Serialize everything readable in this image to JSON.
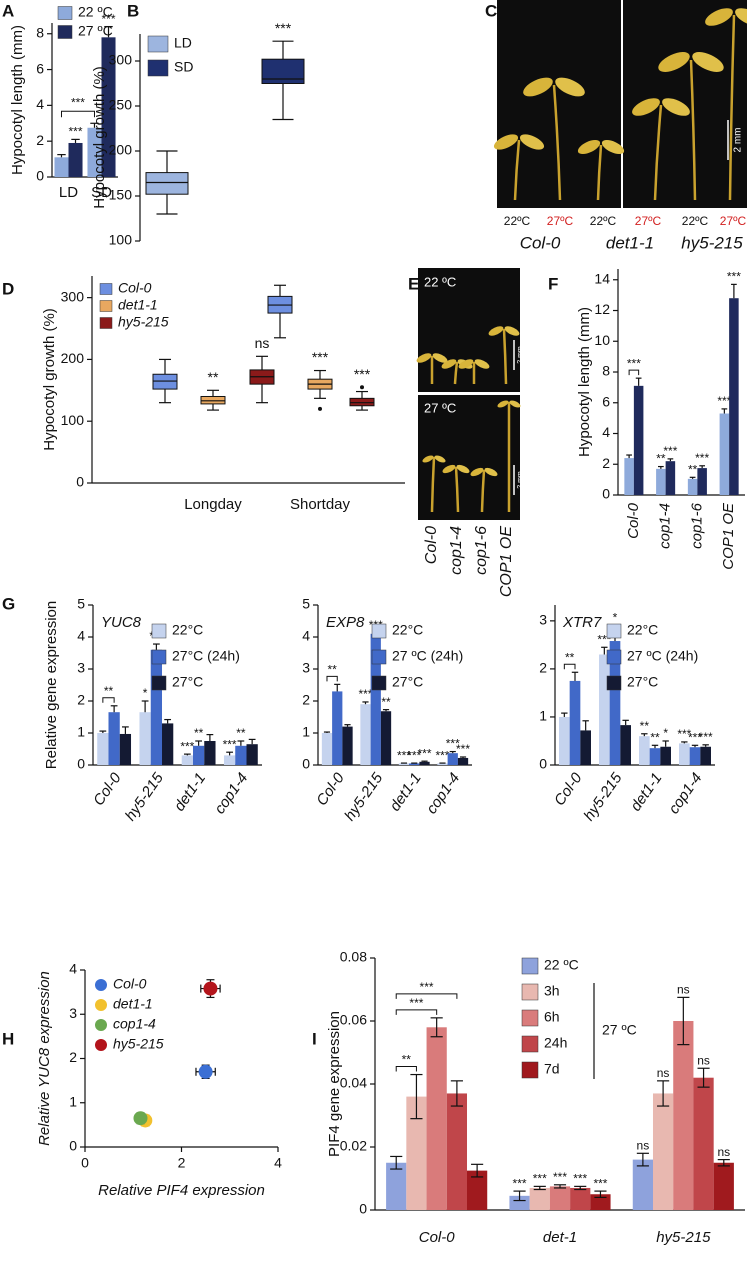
{
  "chart_data": [
    {
      "panel": "A",
      "type": "bar",
      "ylabel": "Hypocotyl length (mm)",
      "categories": [
        "LD",
        "SD"
      ],
      "series": [
        {
          "name": "22 ºC",
          "color": "#8eaadb",
          "values": [
            1.1,
            2.75
          ],
          "errors": [
            0.15,
            0.25
          ],
          "stars": [
            null,
            null
          ]
        },
        {
          "name": "27 ºC",
          "color": "#1f2a5c",
          "values": [
            1.9,
            7.8
          ],
          "errors": [
            0.2,
            0.6
          ],
          "stars": [
            "***",
            "***"
          ]
        }
      ],
      "bracket_label": "***",
      "ylim": [
        0,
        8.6
      ],
      "yticks": [
        0,
        2,
        4,
        6,
        8
      ]
    },
    {
      "panel": "B",
      "type": "box",
      "ylabel": "Hypocotyl growth (%)",
      "series": [
        {
          "name": "LD",
          "color": "#9db5df",
          "values": [
            {
              "min": 130,
              "q1": 152,
              "median": 165,
              "q3": 176,
              "max": 200
            }
          ],
          "stars": [
            null
          ]
        },
        {
          "name": "SD",
          "color": "#1f3070",
          "values": [
            {
              "min": 235,
              "q1": 275,
              "median": 280,
              "q3": 302,
              "max": 322
            }
          ],
          "stars": [
            "***"
          ]
        }
      ],
      "ylim": [
        100,
        330
      ],
      "yticks": [
        100,
        150,
        200,
        250,
        300
      ]
    },
    {
      "panel": "D",
      "type": "box",
      "ylabel": "Hypocotyl growth (%)",
      "categories": [
        "Longday",
        "Shortday"
      ],
      "series": [
        {
          "name": "Col-0",
          "color": "#6d8fe0",
          "values": [
            {
              "min": 130,
              "q1": 152,
              "median": 165,
              "q3": 176,
              "max": 200
            },
            {
              "min": 235,
              "q1": 275,
              "median": 288,
              "q3": 302,
              "max": 320
            }
          ],
          "stars": [
            null,
            null
          ]
        },
        {
          "name": "det1-1",
          "color": "#e8a860",
          "values": [
            {
              "min": 118,
              "q1": 128,
              "median": 133,
              "q3": 140,
              "max": 150
            },
            {
              "min": 137,
              "q1": 152,
              "median": 160,
              "q3": 168,
              "max": 182
            }
          ],
          "outliers": [
            null,
            120
          ],
          "stars": [
            "**",
            "***"
          ]
        },
        {
          "name": "hy5-215",
          "color": "#8b1a1a",
          "values": [
            {
              "min": 130,
              "q1": 160,
              "median": 172,
              "q3": 183,
              "max": 205
            },
            {
              "min": 118,
              "q1": 125,
              "median": 130,
              "q3": 137,
              "max": 148
            }
          ],
          "outliers": [
            null,
            155
          ],
          "stars": [
            "ns",
            "***"
          ]
        }
      ],
      "ylim": [
        0,
        335
      ],
      "yticks": [
        0,
        100,
        200,
        300
      ]
    },
    {
      "panel": "F",
      "type": "bar",
      "ylabel": "Hypocotyl length (mm)",
      "categories": [
        "Col-0",
        "cop1-4",
        "cop1-6",
        "COP1 OE"
      ],
      "series": [
        {
          "name": "22 ºC",
          "color": "#8eaadb",
          "values": [
            2.4,
            1.7,
            1.05,
            5.3
          ],
          "errors": [
            0.2,
            0.15,
            0.1,
            0.3
          ],
          "stars": [
            null,
            "**",
            "**",
            "***"
          ]
        },
        {
          "name": "27 ºC",
          "color": "#1f2a5c",
          "values": [
            7.1,
            2.2,
            1.75,
            12.8
          ],
          "errors": [
            0.5,
            0.15,
            0.15,
            0.9
          ],
          "stars": [
            "***",
            "***",
            "***",
            "***"
          ]
        }
      ],
      "brackets": true,
      "ylim": [
        0,
        14.7
      ],
      "yticks": [
        0,
        2,
        4,
        6,
        8,
        10,
        12,
        14
      ]
    },
    {
      "panel": "G",
      "type": "bar",
      "title": "YUC8",
      "ylabel": "Relative gene expression",
      "categories": [
        "Col-0",
        "hy5-215",
        "det1-1",
        "cop1-4"
      ],
      "series": [
        {
          "name": "22°C",
          "color": "#c5d3ee",
          "values": [
            1.0,
            1.65,
            0.3,
            0.3
          ],
          "errors": [
            0.06,
            0.35,
            0.04,
            0.1
          ],
          "stars": [
            null,
            "*",
            "***",
            "***"
          ]
        },
        {
          "name": "27°C (24h)",
          "color": "#4169c8",
          "values": [
            1.65,
            3.6,
            0.6,
            0.6
          ],
          "errors": [
            0.2,
            0.18,
            0.15,
            0.15
          ],
          "stars": [
            "**",
            "***",
            "**",
            "**"
          ]
        },
        {
          "name": "27°C",
          "color": "#141a33",
          "values": [
            0.97,
            1.3,
            0.75,
            0.65
          ],
          "errors": [
            0.22,
            0.12,
            0.2,
            0.15
          ],
          "stars": [
            null,
            null,
            null,
            null
          ]
        }
      ],
      "brackets": true,
      "ylim": [
        0,
        5
      ],
      "yticks": [
        0,
        1,
        2,
        3,
        4,
        5
      ]
    },
    {
      "type": "bar",
      "title": "EXP8",
      "categories": [
        "Col-0",
        "hy5-215",
        "det1-1",
        "cop1-4"
      ],
      "series": [
        {
          "name": "22°C",
          "color": "#c5d3ee",
          "values": [
            1.0,
            1.9,
            0.05,
            0.05
          ],
          "errors": [
            0.03,
            0.07,
            0.01,
            0.01
          ],
          "stars": [
            null,
            "***",
            "***",
            "***"
          ]
        },
        {
          "name": "27 ºC (24h)",
          "color": "#4169c8",
          "values": [
            2.3,
            4.1,
            0.05,
            0.37
          ],
          "errors": [
            0.22,
            0.03,
            0.01,
            0.05
          ],
          "stars": [
            "**",
            "***",
            "***",
            "***"
          ]
        },
        {
          "name": "27°C",
          "color": "#141a33",
          "values": [
            1.2,
            1.68,
            0.1,
            0.22
          ],
          "errors": [
            0.06,
            0.05,
            0.02,
            0.03
          ],
          "stars": [
            null,
            "**",
            "***",
            "***"
          ]
        }
      ],
      "brackets": true,
      "ylim": [
        0,
        5
      ],
      "yticks": [
        0,
        1,
        2,
        3,
        4,
        5
      ]
    },
    {
      "type": "bar",
      "title": "XTR7",
      "categories": [
        "Col-0",
        "hy5-215",
        "det1-1",
        "cop1-4"
      ],
      "series": [
        {
          "name": "22°C",
          "color": "#c5d3ee",
          "values": [
            1.0,
            2.3,
            0.6,
            0.45
          ],
          "errors": [
            0.08,
            0.15,
            0.05,
            0.03
          ],
          "stars": [
            null,
            "***",
            "**",
            "***"
          ]
        },
        {
          "name": "27 ºC (24h)",
          "color": "#4169c8",
          "values": [
            1.75,
            2.58,
            0.35,
            0.37
          ],
          "errors": [
            0.18,
            0.33,
            0.06,
            0.04
          ],
          "stars": [
            "**",
            "*",
            "**",
            "***"
          ]
        },
        {
          "name": "27°C",
          "color": "#141a33",
          "values": [
            0.72,
            0.83,
            0.38,
            0.38
          ],
          "errors": [
            0.2,
            0.1,
            0.12,
            0.04
          ],
          "stars": [
            null,
            null,
            "*",
            "***"
          ]
        }
      ],
      "brackets": true,
      "ylim": [
        0,
        3.33
      ],
      "yticks": [
        0,
        1,
        2,
        3
      ]
    },
    {
      "panel": "H",
      "type": "scatter",
      "xlabel": "Relative PIF4 expression",
      "ylabel": "Relative YUC8 expression",
      "series": [
        {
          "name": "Col-0",
          "color": "#3b6fd4",
          "x": [
            2.5
          ],
          "values": [
            1.7
          ],
          "xerr": [
            0.2
          ],
          "yerr": [
            0.15
          ]
        },
        {
          "name": "det1-1",
          "color": "#f2c12e",
          "x": [
            1.25
          ],
          "values": [
            0.6
          ],
          "xerr": [
            0.1
          ],
          "yerr": [
            0.12
          ]
        },
        {
          "name": "cop1-4",
          "color": "#6aa84f",
          "x": [
            1.15
          ],
          "values": [
            0.65
          ],
          "xerr": [
            0.1
          ],
          "yerr": [
            0.12
          ]
        },
        {
          "name": "hy5-215",
          "color": "#b3141b",
          "x": [
            2.6
          ],
          "values": [
            3.58
          ],
          "xerr": [
            0.2
          ],
          "yerr": [
            0.2
          ]
        }
      ],
      "xlim": [
        0,
        4
      ],
      "xticks": [
        0,
        2,
        4
      ],
      "ylim": [
        0,
        4
      ],
      "yticks": [
        0,
        1,
        2,
        3,
        4
      ]
    },
    {
      "panel": "I",
      "type": "bar",
      "ylabel": "PIF4 gene expression",
      "categories": [
        "Col-0",
        "det-1",
        "hy5-215"
      ],
      "legend_group": "27 ºC",
      "series": [
        {
          "name": "22 ºC",
          "color": "#8ea2dc",
          "values": [
            0.015,
            0.0045,
            0.016
          ],
          "errors": [
            0.002,
            0.0015,
            0.002
          ],
          "stars": [
            null,
            "***",
            "ns"
          ]
        },
        {
          "name": "3h",
          "color": "#e8b8b0",
          "values": [
            0.036,
            0.007,
            0.037
          ],
          "errors": [
            0.007,
            0.0005,
            0.004
          ],
          "stars": [
            "**",
            "***",
            "ns"
          ]
        },
        {
          "name": "6h",
          "color": "#d97b7b",
          "values": [
            0.058,
            0.0075,
            0.06
          ],
          "errors": [
            0.003,
            0.0005,
            0.0075
          ],
          "stars": [
            "***",
            "***",
            "ns"
          ]
        },
        {
          "name": "24h",
          "color": "#c0464a",
          "values": [
            0.037,
            0.007,
            0.042
          ],
          "errors": [
            0.004,
            0.0005,
            0.003
          ],
          "stars": [
            "***",
            "***",
            "ns"
          ]
        },
        {
          "name": "7d",
          "color": "#a01a1e",
          "values": [
            0.0125,
            0.005,
            0.015
          ],
          "errors": [
            0.002,
            0.001,
            0.001
          ],
          "stars": [
            null,
            "***",
            "ns"
          ]
        }
      ],
      "brackets": true,
      "ylim": [
        0,
        0.08
      ],
      "yticks": [
        0,
        0.02,
        0.04,
        0.06,
        0.08
      ]
    }
  ],
  "photos": [
    {
      "panel": "C",
      "temperatures": [
        "22ºC",
        "27ºC",
        "22ºC",
        "27ºC",
        "22ºC",
        "27ºC"
      ],
      "genotypes": [
        "Col-0",
        "det1-1",
        "hy5-215"
      ],
      "scale": "2 mm"
    },
    {
      "panel": "E",
      "temperatures": [
        "22 ºC",
        "27 ºC"
      ],
      "scales": [
        "2 mm",
        "2 mm"
      ],
      "genotypes": [
        "Col-0",
        "cop1-4",
        "cop1-6",
        "COP1 OE"
      ]
    }
  ]
}
